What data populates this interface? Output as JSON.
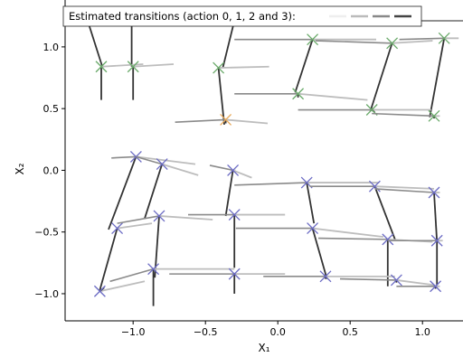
{
  "chart_data": {
    "type": "line",
    "title": "",
    "xlabel": "X₁",
    "ylabel": "X₂",
    "xlim": [
      -1.47,
      1.28
    ],
    "ylim": [
      -1.22,
      1.38
    ],
    "x_ticks": [
      "−1.0",
      "−0.5",
      "0.0",
      "0.5",
      "1.0"
    ],
    "x_tick_values": [
      -1.0,
      -0.5,
      0.0,
      0.5,
      1.0
    ],
    "y_ticks": [
      "−1.0",
      "−0.5",
      "0.0",
      "0.5",
      "1.0"
    ],
    "y_tick_values": [
      -1.0,
      -0.5,
      0.0,
      0.5,
      1.0
    ],
    "grid": false,
    "legend": {
      "placement": "top-left",
      "text": "Estimated transitions (action 0, 1, 2 and 3):",
      "swatches": [
        "#eeeeee",
        "#bbbbbb",
        "#888888",
        "#444444"
      ]
    },
    "action_colors": [
      "#e6e6e6",
      "#bdbdbd",
      "#8a8a8a",
      "#333333"
    ],
    "groups": [
      {
        "color": "#6aaa6a",
        "states": [
          {
            "x": -1.33,
            "y": 1.27,
            "t": [
              [
                -1.31,
                1.27
              ],
              [
                -1.06,
                1.25
              ],
              [
                -1.33,
                1.27
              ],
              [
                -1.21,
                0.83
              ]
            ]
          },
          {
            "x": -1.01,
            "y": 1.24,
            "t": [
              [
                -0.98,
                1.24
              ],
              [
                -0.75,
                1.22
              ],
              [
                -1.01,
                1.24
              ],
              [
                -1.01,
                0.84
              ]
            ]
          },
          {
            "x": -0.29,
            "y": 1.26,
            "t": [
              [
                -0.27,
                1.26
              ],
              [
                0.2,
                1.26
              ],
              [
                -0.29,
                1.26
              ],
              [
                -0.38,
                0.83
              ]
            ]
          },
          {
            "x": -1.22,
            "y": 0.84,
            "t": [
              [
                -1.2,
                0.84
              ],
              [
                -0.93,
                0.86
              ],
              [
                -1.22,
                0.84
              ],
              [
                -1.22,
                0.57
              ]
            ]
          },
          {
            "x": -1.0,
            "y": 0.84,
            "t": [
              [
                -0.98,
                0.84
              ],
              [
                -0.72,
                0.86
              ],
              [
                -1.0,
                0.84
              ],
              [
                -1.0,
                0.57
              ]
            ]
          },
          {
            "x": -0.41,
            "y": 0.83,
            "t": [
              [
                -0.39,
                0.83
              ],
              [
                -0.06,
                0.84
              ],
              [
                -0.41,
                0.83
              ],
              [
                -0.37,
                0.37
              ]
            ]
          },
          {
            "x": 0.24,
            "y": 1.06,
            "t": [
              [
                0.26,
                1.06
              ],
              [
                0.68,
                1.06
              ],
              [
                -0.3,
                1.06
              ],
              [
                0.12,
                0.63
              ]
            ]
          },
          {
            "x": 0.79,
            "y": 1.03,
            "t": [
              [
                0.81,
                1.03
              ],
              [
                1.07,
                1.05
              ],
              [
                0.26,
                1.05
              ],
              [
                0.64,
                0.48
              ]
            ]
          },
          {
            "x": 1.15,
            "y": 1.07,
            "t": [
              [
                1.17,
                1.07
              ],
              [
                1.25,
                1.07
              ],
              [
                0.84,
                1.06
              ],
              [
                1.05,
                0.43
              ]
            ]
          },
          {
            "x": 0.14,
            "y": 0.62,
            "t": [
              [
                0.16,
                0.62
              ],
              [
                0.62,
                0.57
              ],
              [
                -0.3,
                0.62
              ],
              [
                0.14,
                0.59
              ]
            ]
          },
          {
            "x": 0.65,
            "y": 0.49,
            "t": [
              [
                0.67,
                0.49
              ],
              [
                1.06,
                0.49
              ],
              [
                0.14,
                0.49
              ],
              [
                0.67,
                0.47
              ]
            ]
          },
          {
            "x": 1.08,
            "y": 0.44,
            "t": [
              [
                1.1,
                0.44
              ],
              [
                1.12,
                0.44
              ],
              [
                0.65,
                0.46
              ],
              [
                1.08,
                0.42
              ]
            ]
          }
        ]
      },
      {
        "color": "#e8a95a",
        "states": [
          {
            "x": -0.36,
            "y": 0.41,
            "t": [
              [
                -0.34,
                0.41
              ],
              [
                -0.07,
                0.38
              ],
              [
                -0.71,
                0.39
              ],
              [
                -0.36,
                0.38
              ]
            ]
          }
        ]
      },
      {
        "color": "#6b6bc4",
        "states": [
          {
            "x": -0.98,
            "y": 0.11,
            "t": [
              [
                -0.96,
                0.11
              ],
              [
                -0.57,
                0.05
              ],
              [
                -1.15,
                0.1
              ],
              [
                -1.17,
                -0.48
              ]
            ]
          },
          {
            "x": -0.8,
            "y": 0.05,
            "t": [
              [
                -0.78,
                0.05
              ],
              [
                -0.55,
                -0.04
              ],
              [
                -0.98,
                0.11
              ],
              [
                -0.92,
                -0.39
              ]
            ]
          },
          {
            "x": -0.31,
            "y": 0.0,
            "t": [
              [
                -0.29,
                0.0
              ],
              [
                -0.18,
                -0.06
              ],
              [
                -0.47,
                0.04
              ],
              [
                -0.36,
                -0.37
              ]
            ]
          },
          {
            "x": -1.11,
            "y": -0.47,
            "t": [
              [
                -1.09,
                -0.47
              ],
              [
                -0.87,
                -0.43
              ],
              [
                -1.11,
                -0.47
              ],
              [
                -1.23,
                -0.97
              ]
            ]
          },
          {
            "x": -0.82,
            "y": -0.37,
            "t": [
              [
                -0.8,
                -0.37
              ],
              [
                -0.45,
                -0.4
              ],
              [
                -1.11,
                -0.43
              ],
              [
                -0.85,
                -0.87
              ]
            ]
          },
          {
            "x": -0.3,
            "y": -0.36,
            "t": [
              [
                -0.28,
                -0.36
              ],
              [
                0.05,
                -0.36
              ],
              [
                -0.62,
                -0.36
              ],
              [
                -0.3,
                -0.79
              ]
            ]
          },
          {
            "x": -1.23,
            "y": -0.98,
            "t": [
              [
                -1.21,
                -0.98
              ],
              [
                -0.92,
                -0.9
              ],
              [
                -1.23,
                -0.98
              ],
              [
                -1.2,
                -0.95
              ]
            ]
          },
          {
            "x": -0.86,
            "y": -0.8,
            "t": [
              [
                -0.84,
                -0.8
              ],
              [
                -0.3,
                -0.8
              ],
              [
                -1.16,
                -0.9
              ],
              [
                -0.86,
                -1.1
              ]
            ]
          },
          {
            "x": -0.3,
            "y": -0.84,
            "t": [
              [
                -0.28,
                -0.84
              ],
              [
                0.05,
                -0.84
              ],
              [
                -0.75,
                -0.84
              ],
              [
                -0.3,
                -1.0
              ]
            ]
          },
          {
            "x": 0.2,
            "y": -0.1,
            "t": [
              [
                0.22,
                -0.1
              ],
              [
                0.7,
                -0.1
              ],
              [
                -0.3,
                -0.12
              ],
              [
                0.25,
                -0.43
              ]
            ]
          },
          {
            "x": 0.67,
            "y": -0.13,
            "t": [
              [
                0.69,
                -0.13
              ],
              [
                1.08,
                -0.15
              ],
              [
                0.22,
                -0.13
              ],
              [
                0.81,
                -0.56
              ]
            ]
          },
          {
            "x": 1.08,
            "y": -0.18,
            "t": [
              [
                1.1,
                -0.18
              ],
              [
                1.12,
                -0.18
              ],
              [
                0.67,
                -0.15
              ],
              [
                1.1,
                -0.58
              ]
            ]
          },
          {
            "x": 0.24,
            "y": -0.47,
            "t": [
              [
                0.26,
                -0.47
              ],
              [
                0.73,
                -0.54
              ],
              [
                -0.29,
                -0.47
              ],
              [
                0.34,
                -0.88
              ]
            ]
          },
          {
            "x": 0.76,
            "y": -0.56,
            "t": [
              [
                0.78,
                -0.56
              ],
              [
                1.07,
                -0.58
              ],
              [
                0.28,
                -0.55
              ],
              [
                0.76,
                -0.94
              ]
            ]
          },
          {
            "x": 1.1,
            "y": -0.57,
            "t": [
              [
                1.12,
                -0.57
              ],
              [
                1.14,
                -0.57
              ],
              [
                0.76,
                -0.57
              ],
              [
                1.1,
                -0.95
              ]
            ]
          },
          {
            "x": 0.33,
            "y": -0.86,
            "t": [
              [
                0.35,
                -0.86
              ],
              [
                0.81,
                -0.86
              ],
              [
                -0.1,
                -0.86
              ],
              [
                0.33,
                -0.88
              ]
            ]
          },
          {
            "x": 0.82,
            "y": -0.89,
            "t": [
              [
                0.84,
                -0.89
              ],
              [
                1.08,
                -0.93
              ],
              [
                0.43,
                -0.88
              ],
              [
                0.82,
                -0.91
              ]
            ]
          },
          {
            "x": 1.09,
            "y": -0.94,
            "t": [
              [
                1.11,
                -0.94
              ],
              [
                1.12,
                -0.94
              ],
              [
                0.82,
                -0.94
              ],
              [
                1.09,
                -0.96
              ]
            ]
          }
        ]
      }
    ]
  }
}
